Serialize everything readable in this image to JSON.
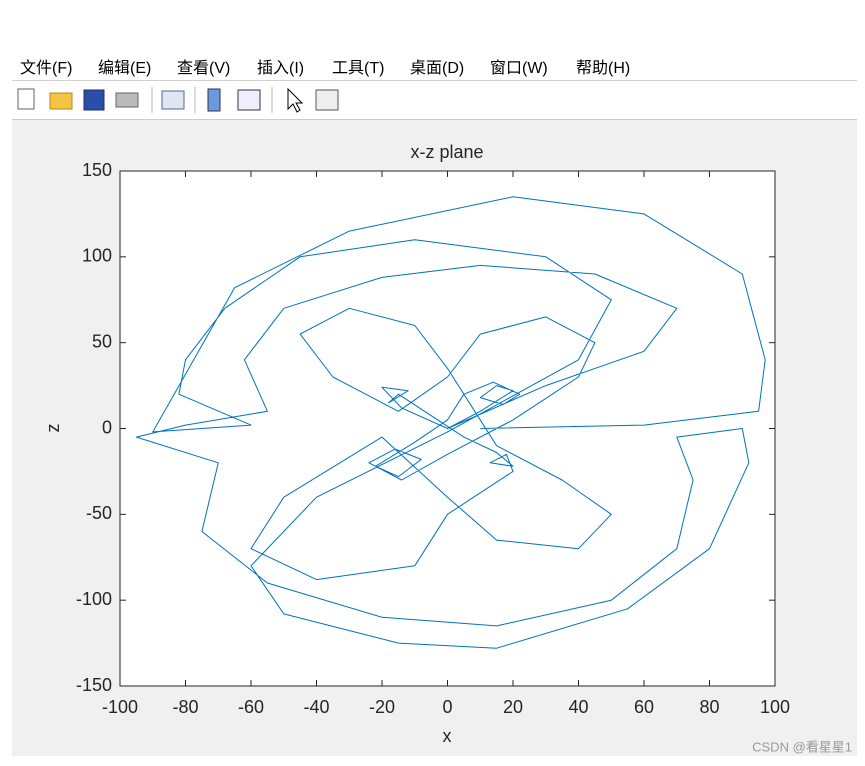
{
  "menu": [
    "文件(F)",
    "编辑(E)",
    "查看(V)",
    "插入(I)",
    "工具(T)",
    "桌面(D)",
    "窗口(W)",
    "帮助(H)"
  ],
  "watermark": "CSDN @看星星1",
  "chart_data": {
    "type": "line",
    "title": "x-z plane",
    "x_label": "x",
    "y_label": "z",
    "xlim": [
      -100,
      100
    ],
    "ylim": [
      -150,
      150
    ],
    "xticks": [
      -100,
      -80,
      -60,
      -40,
      -20,
      0,
      20,
      40,
      60,
      80,
      100
    ],
    "yticks": [
      -150,
      -100,
      -50,
      0,
      50,
      100,
      150
    ],
    "series": [
      {
        "color": "#0072bd",
        "x": [
          0,
          10,
          20,
          15,
          10,
          17,
          22,
          14,
          5,
          0,
          -10,
          -22,
          -15,
          -8,
          -16,
          -24,
          -14,
          0,
          20,
          40,
          45,
          30,
          10,
          0,
          -15,
          -35,
          -45,
          -30,
          -10,
          0,
          15,
          35,
          50,
          40,
          15,
          0,
          -20,
          -50,
          -60,
          -40,
          -10,
          0,
          20,
          18,
          13,
          20,
          15,
          5,
          -15,
          -18,
          -12,
          -20,
          -14,
          0,
          30,
          60,
          70,
          45,
          10,
          -20,
          -50,
          -62,
          -55,
          -80,
          -95,
          -70,
          -75,
          -55,
          -20,
          15,
          50,
          70,
          75,
          70,
          90,
          92,
          80,
          55,
          15,
          -15,
          -50,
          -60,
          -40,
          0,
          40,
          50,
          30,
          -10,
          -45,
          -68,
          -80,
          -82,
          -60,
          -90,
          -65,
          -30,
          20,
          60,
          90,
          97,
          95,
          60,
          10
        ],
        "values": [
          0,
          10,
          22,
          25,
          18,
          14,
          20,
          27,
          20,
          5,
          -8,
          -22,
          -28,
          -18,
          -12,
          -20,
          -30,
          -15,
          5,
          30,
          50,
          65,
          55,
          30,
          10,
          30,
          55,
          70,
          60,
          35,
          -10,
          -30,
          -50,
          -70,
          -65,
          -40,
          -5,
          -40,
          -70,
          -88,
          -80,
          -50,
          -25,
          -15,
          -20,
          -22,
          -14,
          -5,
          20,
          15,
          22,
          24,
          12,
          0,
          25,
          45,
          70,
          90,
          95,
          88,
          70,
          40,
          10,
          2,
          -5,
          -20,
          -60,
          -90,
          -110,
          -115,
          -100,
          -70,
          -30,
          -5,
          0,
          -20,
          -70,
          -105,
          -128,
          -125,
          -108,
          -80,
          -40,
          -2,
          40,
          75,
          100,
          110,
          100,
          70,
          40,
          20,
          2,
          -2,
          82,
          115,
          135,
          125,
          90,
          40,
          10,
          2,
          0
        ]
      }
    ]
  }
}
